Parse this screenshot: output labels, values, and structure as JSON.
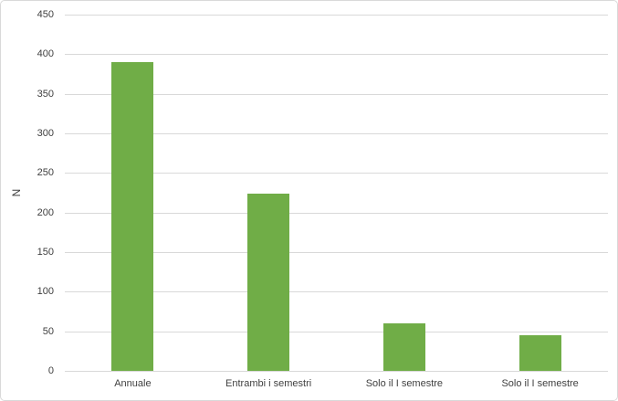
{
  "chart_data": {
    "type": "bar",
    "categories": [
      "Annuale",
      "Entrambi i semestri",
      "Solo il I semestre",
      "Solo il I semestre"
    ],
    "values": [
      390,
      224,
      60,
      45
    ],
    "title": "",
    "xlabel": "",
    "ylabel": "N",
    "ylim": [
      0,
      450
    ],
    "ytick_interval": 50,
    "yticks": [
      0,
      50,
      100,
      150,
      200,
      250,
      300,
      350,
      400,
      450
    ],
    "grid": true,
    "legend": "none",
    "bar_color": "#70AD47",
    "gridline_color": "#D9D9D9",
    "border_color": "#D9D9D9",
    "text_color": "#404040",
    "background_color": "#FFFFFF"
  }
}
